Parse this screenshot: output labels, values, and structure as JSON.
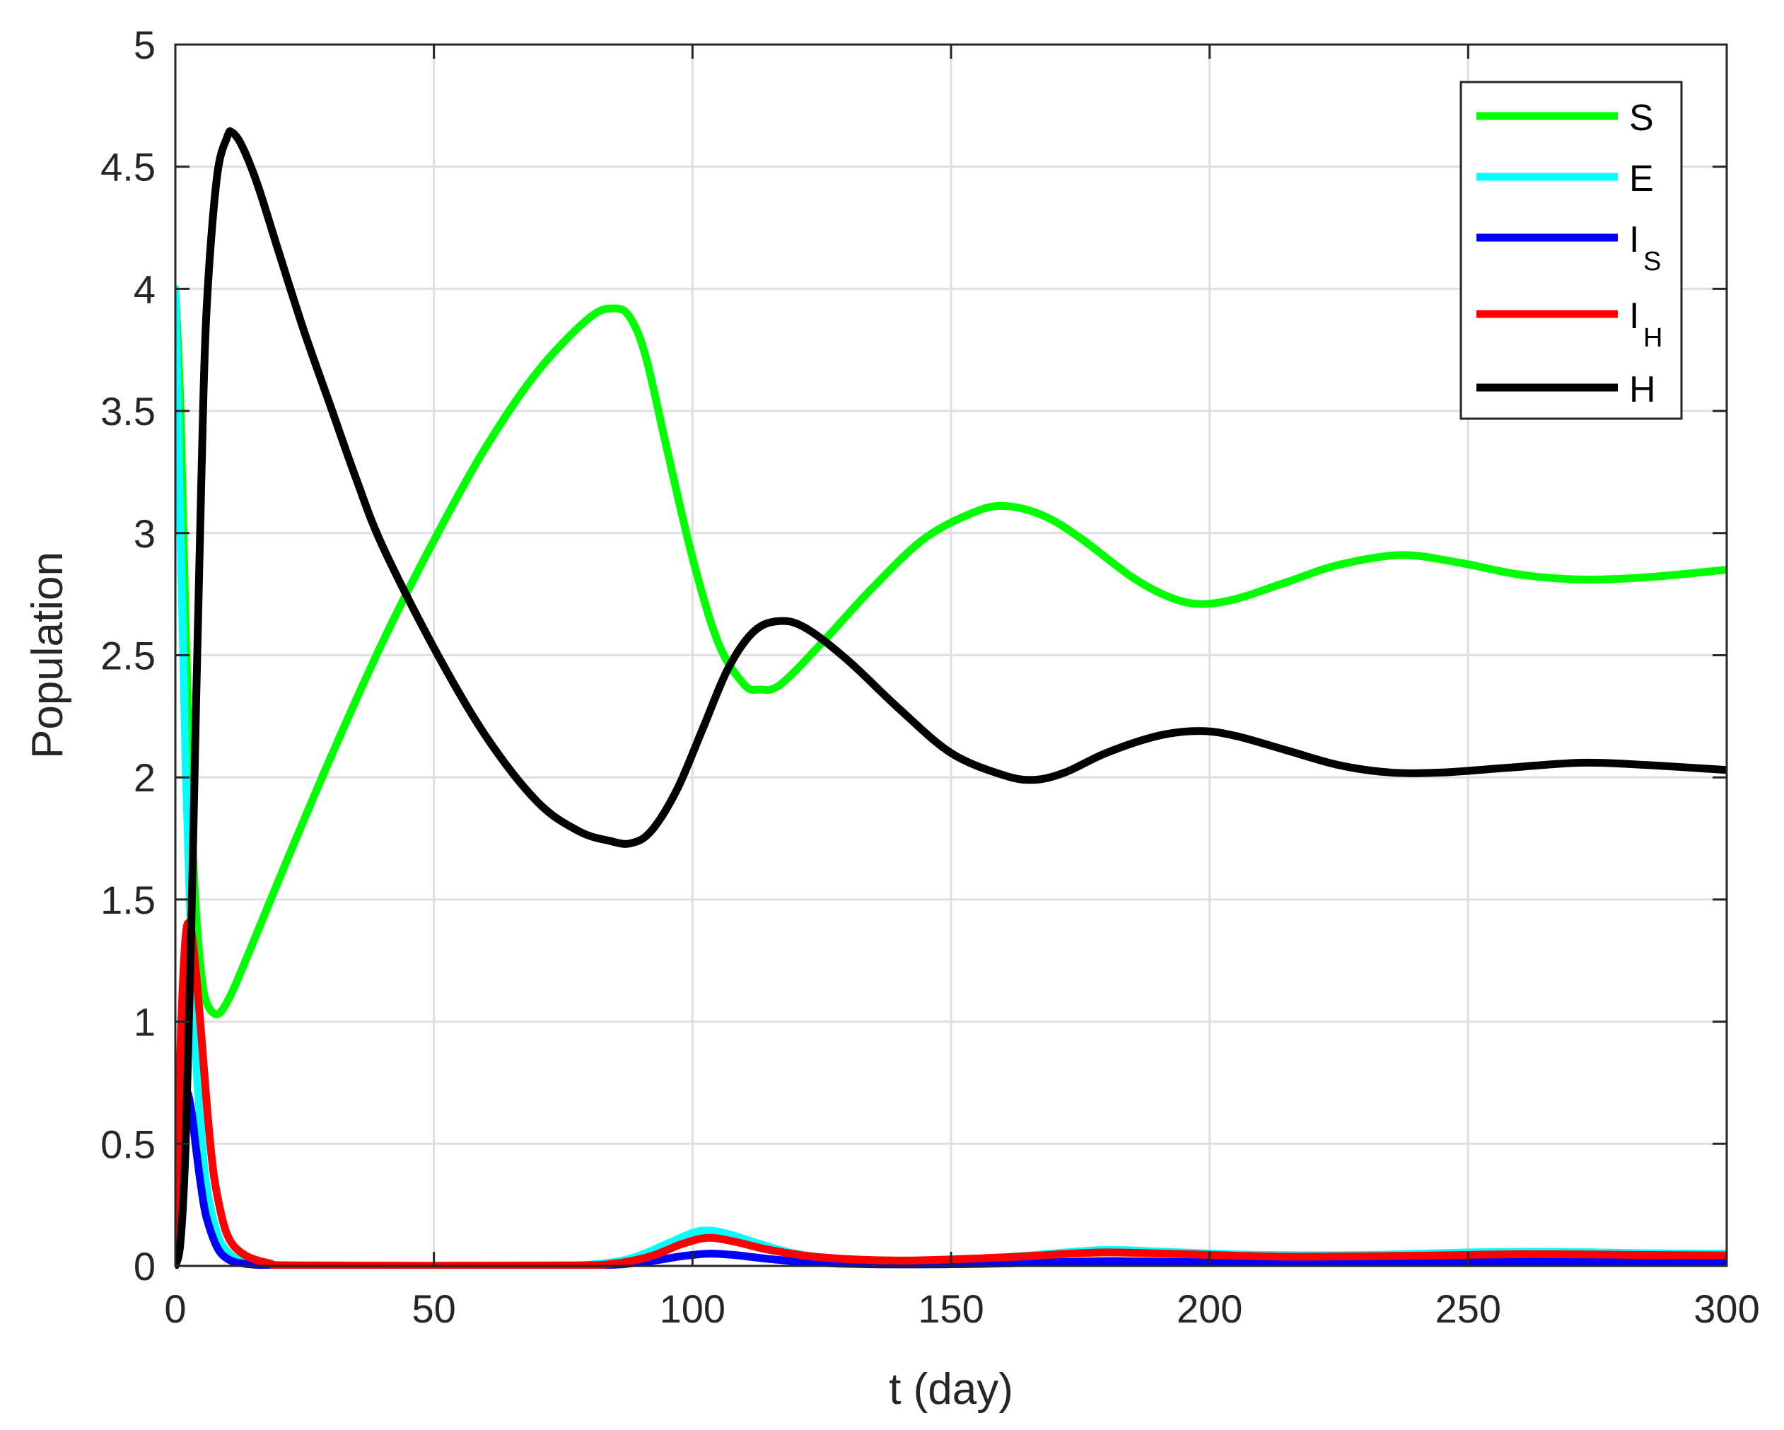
{
  "chart_data": {
    "type": "line",
    "title": "",
    "xlabel": "t (day)",
    "ylabel": "Population",
    "xlim": [
      0,
      300
    ],
    "ylim": [
      0,
      5
    ],
    "xticks": [
      0,
      50,
      100,
      150,
      200,
      250,
      300
    ],
    "yticks": [
      0,
      0.5,
      1,
      1.5,
      2,
      2.5,
      3,
      3.5,
      4,
      4.5,
      5
    ],
    "xtick_labels": [
      "0",
      "50",
      "100",
      "150",
      "200",
      "250",
      "300"
    ],
    "ytick_labels": [
      "0",
      "0.5",
      "1",
      "1.5",
      "2",
      "2.5",
      "3",
      "3.5",
      "4",
      "4.5",
      "5"
    ],
    "grid": true,
    "legend_position": "top-right",
    "series": [
      {
        "name": "S",
        "label_main": "S",
        "label_sub": "",
        "color": "#00ff00",
        "points": [
          [
            0,
            4
          ],
          [
            1,
            3.5
          ],
          [
            2,
            2.6
          ],
          [
            3,
            1.9
          ],
          [
            4,
            1.45
          ],
          [
            5,
            1.2
          ],
          [
            6,
            1.08
          ],
          [
            8,
            1.03
          ],
          [
            10,
            1.08
          ],
          [
            13,
            1.22
          ],
          [
            20,
            1.58
          ],
          [
            30,
            2.08
          ],
          [
            40,
            2.55
          ],
          [
            50,
            2.97
          ],
          [
            60,
            3.35
          ],
          [
            70,
            3.66
          ],
          [
            80,
            3.88
          ],
          [
            85,
            3.92
          ],
          [
            88,
            3.88
          ],
          [
            91,
            3.72
          ],
          [
            95,
            3.35
          ],
          [
            100,
            2.9
          ],
          [
            105,
            2.55
          ],
          [
            110,
            2.38
          ],
          [
            113,
            2.36
          ],
          [
            117,
            2.38
          ],
          [
            125,
            2.55
          ],
          [
            135,
            2.78
          ],
          [
            145,
            2.98
          ],
          [
            155,
            3.09
          ],
          [
            161,
            3.11
          ],
          [
            168,
            3.07
          ],
          [
            175,
            2.98
          ],
          [
            185,
            2.82
          ],
          [
            192,
            2.74
          ],
          [
            198,
            2.71
          ],
          [
            205,
            2.73
          ],
          [
            215,
            2.8
          ],
          [
            225,
            2.87
          ],
          [
            237,
            2.91
          ],
          [
            248,
            2.88
          ],
          [
            260,
            2.83
          ],
          [
            272,
            2.81
          ],
          [
            285,
            2.82
          ],
          [
            300,
            2.85
          ]
        ]
      },
      {
        "name": "E",
        "label_main": "E",
        "label_sub": "",
        "color": "#00ffff",
        "points": [
          [
            0,
            4
          ],
          [
            1,
            3
          ],
          [
            2,
            2.05
          ],
          [
            3,
            1.35
          ],
          [
            4,
            0.85
          ],
          [
            5,
            0.55
          ],
          [
            6,
            0.33
          ],
          [
            8,
            0.14
          ],
          [
            10,
            0.06
          ],
          [
            13,
            0.02
          ],
          [
            18,
            0.005
          ],
          [
            25,
            0
          ],
          [
            70,
            0
          ],
          [
            80,
            0.005
          ],
          [
            88,
            0.03
          ],
          [
            95,
            0.09
          ],
          [
            100,
            0.135
          ],
          [
            103,
            0.145
          ],
          [
            107,
            0.13
          ],
          [
            113,
            0.09
          ],
          [
            120,
            0.05
          ],
          [
            130,
            0.025
          ],
          [
            145,
            0.02
          ],
          [
            160,
            0.035
          ],
          [
            175,
            0.06
          ],
          [
            182,
            0.065
          ],
          [
            195,
            0.055
          ],
          [
            210,
            0.045
          ],
          [
            230,
            0.045
          ],
          [
            250,
            0.055
          ],
          [
            265,
            0.058
          ],
          [
            285,
            0.052
          ],
          [
            300,
            0.05
          ]
        ]
      },
      {
        "name": "I_S",
        "label_main": "I",
        "label_sub": "S",
        "color": "#0000ff",
        "points": [
          [
            0,
            0
          ],
          [
            1,
            0.45
          ],
          [
            2,
            0.7
          ],
          [
            3,
            0.65
          ],
          [
            4,
            0.48
          ],
          [
            5,
            0.32
          ],
          [
            6,
            0.2
          ],
          [
            8,
            0.08
          ],
          [
            10,
            0.03
          ],
          [
            13,
            0.01
          ],
          [
            18,
            0.002
          ],
          [
            25,
            0
          ],
          [
            75,
            0
          ],
          [
            85,
            0.005
          ],
          [
            92,
            0.02
          ],
          [
            98,
            0.04
          ],
          [
            103,
            0.05
          ],
          [
            108,
            0.045
          ],
          [
            115,
            0.028
          ],
          [
            125,
            0.012
          ],
          [
            140,
            0.006
          ],
          [
            160,
            0.01
          ],
          [
            175,
            0.018
          ],
          [
            182,
            0.02
          ],
          [
            195,
            0.016
          ],
          [
            215,
            0.013
          ],
          [
            240,
            0.016
          ],
          [
            260,
            0.018
          ],
          [
            280,
            0.016
          ],
          [
            300,
            0.015
          ]
        ]
      },
      {
        "name": "I_H",
        "label_main": "I",
        "label_sub": "H",
        "color": "#ff0000",
        "points": [
          [
            0,
            0
          ],
          [
            1,
            0.9
          ],
          [
            2,
            1.35
          ],
          [
            3,
            1.38
          ],
          [
            4,
            1.2
          ],
          [
            5,
            0.95
          ],
          [
            6,
            0.68
          ],
          [
            7,
            0.45
          ],
          [
            8,
            0.3
          ],
          [
            10,
            0.13
          ],
          [
            13,
            0.05
          ],
          [
            18,
            0.012
          ],
          [
            25,
            0.002
          ],
          [
            75,
            0.002
          ],
          [
            85,
            0.01
          ],
          [
            92,
            0.04
          ],
          [
            98,
            0.09
          ],
          [
            103,
            0.115
          ],
          [
            108,
            0.1
          ],
          [
            115,
            0.065
          ],
          [
            125,
            0.035
          ],
          [
            140,
            0.022
          ],
          [
            160,
            0.035
          ],
          [
            175,
            0.052
          ],
          [
            182,
            0.055
          ],
          [
            195,
            0.048
          ],
          [
            215,
            0.038
          ],
          [
            240,
            0.042
          ],
          [
            262,
            0.048
          ],
          [
            285,
            0.045
          ],
          [
            300,
            0.043
          ]
        ]
      },
      {
        "name": "H",
        "label_main": "H",
        "label_sub": "",
        "color": "#000000",
        "points": [
          [
            0,
            0
          ],
          [
            1,
            0.1
          ],
          [
            2,
            0.5
          ],
          [
            3,
            1.3
          ],
          [
            4,
            2.3
          ],
          [
            5,
            3.2
          ],
          [
            6,
            3.9
          ],
          [
            8,
            4.45
          ],
          [
            10,
            4.62
          ],
          [
            11,
            4.64
          ],
          [
            13,
            4.58
          ],
          [
            16,
            4.42
          ],
          [
            20,
            4.15
          ],
          [
            25,
            3.82
          ],
          [
            30,
            3.52
          ],
          [
            35,
            3.22
          ],
          [
            40,
            2.95
          ],
          [
            50,
            2.53
          ],
          [
            60,
            2.17
          ],
          [
            70,
            1.9
          ],
          [
            78,
            1.78
          ],
          [
            84,
            1.74
          ],
          [
            88,
            1.73
          ],
          [
            92,
            1.78
          ],
          [
            97,
            1.95
          ],
          [
            102,
            2.2
          ],
          [
            107,
            2.45
          ],
          [
            112,
            2.6
          ],
          [
            117,
            2.64
          ],
          [
            122,
            2.61
          ],
          [
            130,
            2.48
          ],
          [
            140,
            2.28
          ],
          [
            150,
            2.1
          ],
          [
            160,
            2.01
          ],
          [
            166,
            1.99
          ],
          [
            172,
            2.02
          ],
          [
            180,
            2.1
          ],
          [
            190,
            2.17
          ],
          [
            198,
            2.19
          ],
          [
            205,
            2.17
          ],
          [
            215,
            2.11
          ],
          [
            225,
            2.05
          ],
          [
            235,
            2.02
          ],
          [
            245,
            2.02
          ],
          [
            258,
            2.04
          ],
          [
            272,
            2.06
          ],
          [
            285,
            2.05
          ],
          [
            300,
            2.03
          ]
        ]
      }
    ]
  }
}
